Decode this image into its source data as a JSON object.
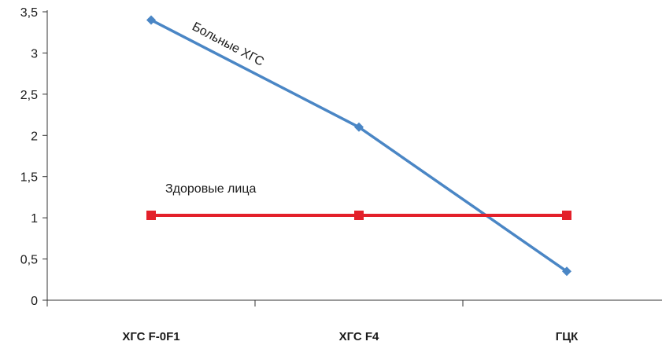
{
  "chart_data": {
    "type": "line",
    "categories": [
      "ХГС F-0F1",
      "ХГС F4",
      "ГЦК"
    ],
    "ylim": [
      0,
      3.5
    ],
    "yticks": [
      "0",
      "0,5",
      "1",
      "1,5",
      "2",
      "2,5",
      "3",
      "3,5"
    ],
    "grid": false,
    "legend": "inline",
    "series": [
      {
        "name": "Больные ХГС",
        "values": [
          3.4,
          2.1,
          0.35
        ],
        "color": "#4a86c5",
        "marker": "diamond"
      },
      {
        "name": "Здоровые лица",
        "values": [
          1.03,
          1.03,
          1.03
        ],
        "color": "#e3202a",
        "marker": "square"
      }
    ]
  }
}
